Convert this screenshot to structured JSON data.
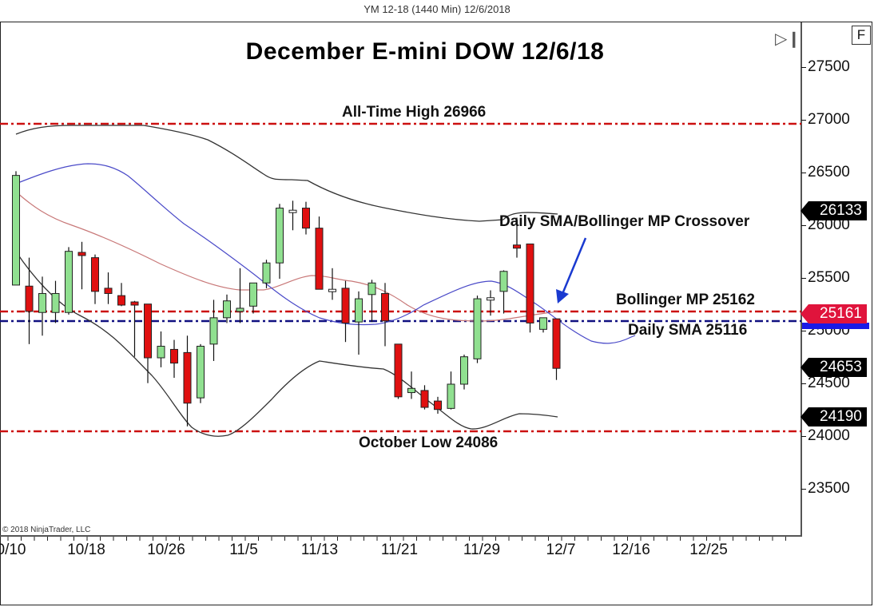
{
  "window": {
    "caption": "YM 12-18 (1440 Min)  12/6/2018",
    "f_button": "F",
    "scroll_end_icon": "skip-to-end-icon",
    "copyright": "© 2018 NinjaTrader, LLC"
  },
  "colors": {
    "bull_candle": "#90e090",
    "bear_candle": "#e01010",
    "doji": "#ffffff",
    "upper_band": "#333333",
    "lower_band": "#333333",
    "bollinger_mp": "#c87878",
    "daily_sma": "#4a4ac8",
    "hline_red": "#cc1010",
    "hline_blue": "#101080",
    "arrow": "#1a3ad0"
  },
  "annotations": {
    "ath": "All-Time High 26966",
    "oct_low": "October Low 24086",
    "crossover": "Daily SMA/Bollinger MP Crossover",
    "bollinger_mp": "Bollinger MP 25162",
    "daily_sma": "Daily SMA 25116"
  },
  "price_tags": {
    "upper": "26133",
    "mp": "25161",
    "last": "24653",
    "lower": "24190"
  },
  "chart_data": {
    "type": "candlestick",
    "title": "December E-mini DOW 12/6/18",
    "instrument": "YM 12-18 (1440 Min)",
    "ylabel": "",
    "xlabel": "",
    "ylim": [
      23000,
      27900
    ],
    "y_ticks": [
      27500,
      27000,
      26500,
      26000,
      25500,
      25000,
      24500,
      24000,
      23500
    ],
    "x_ticks": [
      "0/10",
      "10/18",
      "10/26",
      "11/5",
      "11/13",
      "11/21",
      "11/29",
      "12/7",
      "12/16",
      "12/25"
    ],
    "horizontal_lines": [
      {
        "label": "All-Time High",
        "value": 26966,
        "style": "dash-dot",
        "color": "red"
      },
      {
        "label": "Bollinger MP",
        "value": 25162,
        "style": "dash-dot",
        "color": "red"
      },
      {
        "label": "Daily SMA",
        "value": 25116,
        "style": "dash-dot",
        "color": "blue"
      },
      {
        "label": "October Low",
        "value": 24086,
        "style": "dash-dot",
        "color": "red"
      }
    ],
    "candles": [
      {
        "open": 25440,
        "high": 26520,
        "low": 25440,
        "close": 26480
      },
      {
        "open": 25430,
        "high": 25700,
        "low": 24880,
        "close": 25190
      },
      {
        "open": 25180,
        "high": 25520,
        "low": 24960,
        "close": 25360
      },
      {
        "open": 25180,
        "high": 25480,
        "low": 25080,
        "close": 25360
      },
      {
        "open": 25180,
        "high": 25800,
        "low": 25160,
        "close": 25760
      },
      {
        "open": 25750,
        "high": 25850,
        "low": 25400,
        "close": 25720
      },
      {
        "open": 25700,
        "high": 25730,
        "low": 25260,
        "close": 25380
      },
      {
        "open": 25410,
        "high": 25560,
        "low": 25260,
        "close": 25360
      },
      {
        "open": 25340,
        "high": 25460,
        "low": 25240,
        "close": 25250
      },
      {
        "open": 25280,
        "high": 25290,
        "low": 24760,
        "close": 25250
      },
      {
        "open": 25260,
        "high": 25260,
        "low": 24510,
        "close": 24750
      },
      {
        "open": 24750,
        "high": 25000,
        "low": 24660,
        "close": 24860
      },
      {
        "open": 24830,
        "high": 24920,
        "low": 24560,
        "close": 24700
      },
      {
        "open": 24800,
        "high": 24960,
        "low": 24100,
        "close": 24320
      },
      {
        "open": 24370,
        "high": 24880,
        "low": 24320,
        "close": 24860
      },
      {
        "open": 24880,
        "high": 25300,
        "low": 24720,
        "close": 25130
      },
      {
        "open": 25130,
        "high": 25350,
        "low": 25080,
        "close": 25290
      },
      {
        "open": 25190,
        "high": 25600,
        "low": 25080,
        "close": 25220
      },
      {
        "open": 25240,
        "high": 25460,
        "low": 25170,
        "close": 25460
      },
      {
        "open": 25460,
        "high": 25680,
        "low": 25410,
        "close": 25650
      },
      {
        "open": 25650,
        "high": 26210,
        "low": 25500,
        "close": 26170
      },
      {
        "open": 26150,
        "high": 26240,
        "low": 25960,
        "close": 26140
      },
      {
        "open": 26170,
        "high": 26230,
        "low": 25920,
        "close": 25980
      },
      {
        "open": 25980,
        "high": 26090,
        "low": 25400,
        "close": 25400
      },
      {
        "open": 25400,
        "high": 25600,
        "low": 25300,
        "close": 25400
      },
      {
        "open": 25410,
        "high": 25480,
        "low": 24900,
        "close": 25080
      },
      {
        "open": 25090,
        "high": 25380,
        "low": 24780,
        "close": 25310
      },
      {
        "open": 25350,
        "high": 25490,
        "low": 25090,
        "close": 25460
      },
      {
        "open": 25360,
        "high": 25460,
        "low": 24860,
        "close": 25100
      },
      {
        "open": 24880,
        "high": 24880,
        "low": 24360,
        "close": 24380
      },
      {
        "open": 24420,
        "high": 24620,
        "low": 24360,
        "close": 24460
      },
      {
        "open": 24440,
        "high": 24490,
        "low": 24260,
        "close": 24280
      },
      {
        "open": 24340,
        "high": 24380,
        "low": 24220,
        "close": 24260
      },
      {
        "open": 24270,
        "high": 24620,
        "low": 24260,
        "close": 24500
      },
      {
        "open": 24500,
        "high": 24780,
        "low": 24450,
        "close": 24760
      },
      {
        "open": 24740,
        "high": 25340,
        "low": 24700,
        "close": 25310
      },
      {
        "open": 25320,
        "high": 25390,
        "low": 25150,
        "close": 25310
      },
      {
        "open": 25380,
        "high": 25580,
        "low": 25170,
        "close": 25570
      },
      {
        "open": 25820,
        "high": 26080,
        "low": 25700,
        "close": 25790
      },
      {
        "open": 25830,
        "high": 25830,
        "low": 24990,
        "close": 25080
      },
      {
        "open": 25020,
        "high": 25130,
        "low": 24990,
        "close": 25130
      },
      {
        "open": 25120,
        "high": 25120,
        "low": 24540,
        "close": 24650
      }
    ],
    "series": [
      {
        "name": "Bollinger Upper",
        "values": [
          26900,
          26960,
          26970,
          26970,
          26960,
          26920,
          26870,
          26780,
          26650,
          26480,
          26440,
          26430,
          26310,
          26200,
          26130,
          26080,
          26070,
          26100,
          26150,
          26150
        ]
      },
      {
        "name": "Bollinger MP",
        "values": [
          26350,
          26180,
          26000,
          25900,
          25820,
          25700,
          25500,
          25430,
          25420,
          25420,
          25530,
          25520,
          25460,
          25320,
          25210,
          25130,
          25100,
          25140,
          25160
        ]
      },
      {
        "name": "Bollinger Lower",
        "values": [
          25800,
          25530,
          25180,
          24850,
          24400,
          24000,
          24010,
          24250,
          24720,
          24680,
          24600,
          24390,
          24240,
          24090,
          24110,
          24200,
          24160
        ]
      },
      {
        "name": "Daily SMA",
        "values": [
          26400,
          26600,
          26580,
          26300,
          25900,
          25600,
          25300,
          25120,
          25080,
          25100,
          25200,
          25400,
          25480,
          25300,
          25100,
          24900,
          24880,
          25000
        ]
      }
    ]
  }
}
